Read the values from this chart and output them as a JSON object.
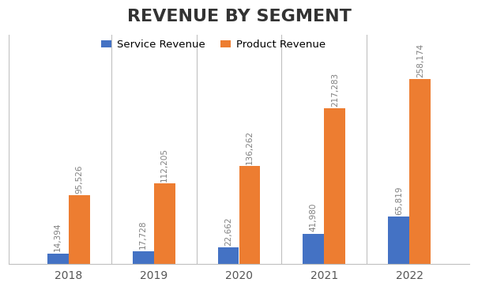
{
  "title": "REVENUE BY SEGMENT",
  "years": [
    "2018",
    "2019",
    "2020",
    "2021",
    "2022"
  ],
  "service_revenue": [
    14394,
    17728,
    22662,
    41980,
    65819
  ],
  "product_revenue": [
    95526,
    112205,
    136262,
    217283,
    258174
  ],
  "service_color": "#4472C4",
  "product_color": "#ED7D31",
  "service_label": "Service Revenue",
  "product_label": "Product Revenue",
  "title_fontsize": 16,
  "label_fontsize": 7.5,
  "legend_fontsize": 9.5,
  "tick_fontsize": 10,
  "bar_width": 0.25,
  "ylim": [
    0,
    320000
  ],
  "background_color": "#FFFFFF",
  "grid_color": "#C0C0C0",
  "annotation_color": "#808080"
}
